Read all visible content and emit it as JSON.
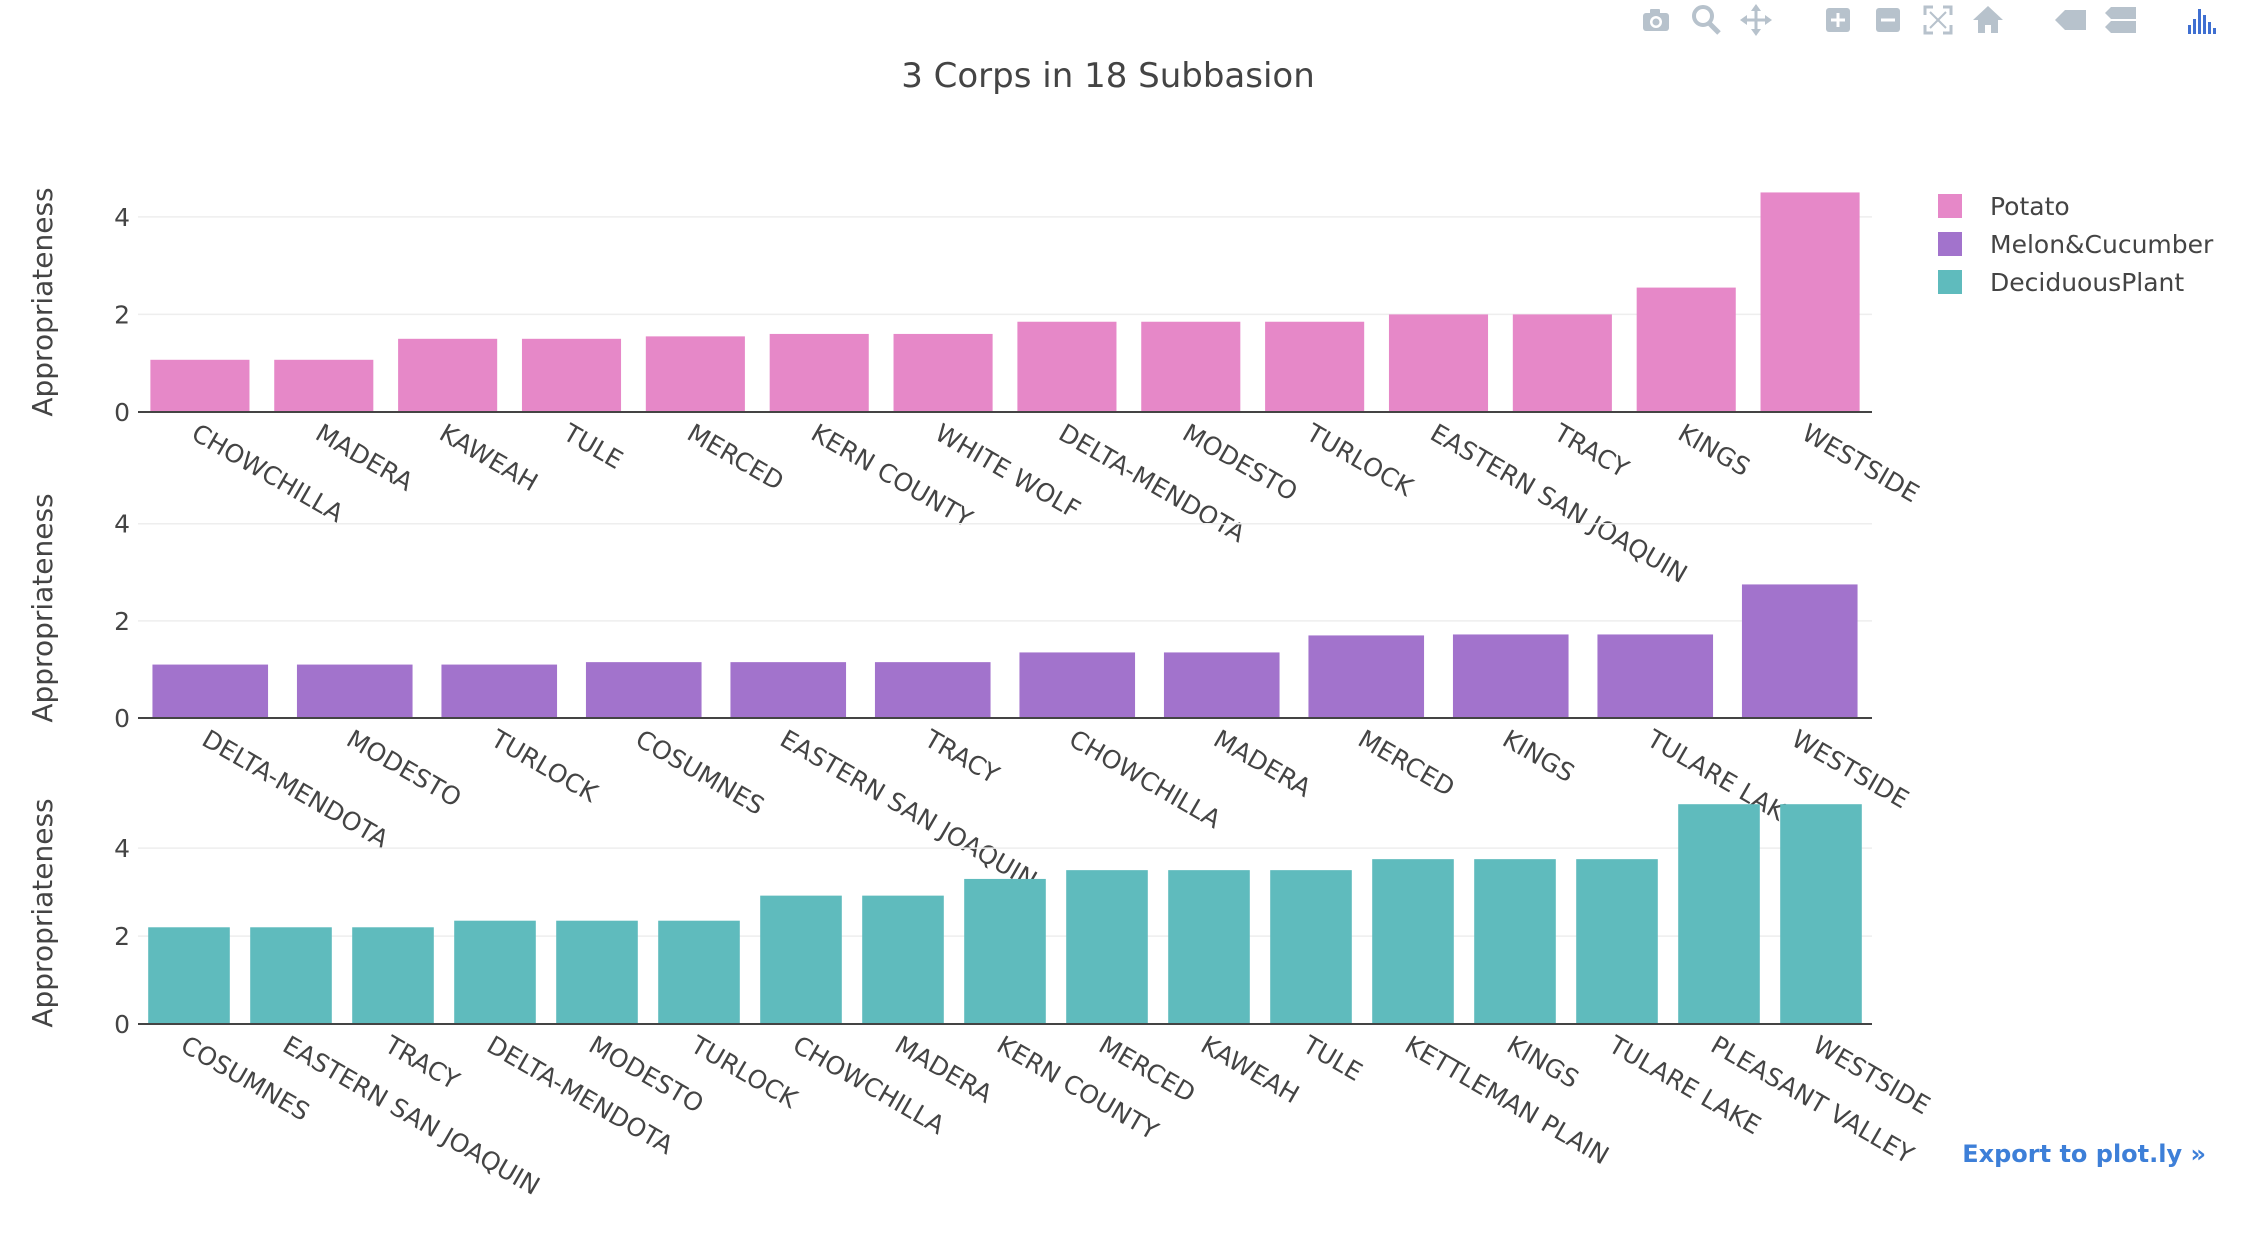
{
  "toolbar": {
    "buttons": [
      {
        "name": "camera-icon",
        "label": "Download plot as a png"
      },
      {
        "name": "zoom-icon",
        "label": "Zoom"
      },
      {
        "name": "pan-icon",
        "label": "Pan"
      },
      {
        "name": "zoom-in-icon",
        "label": "Zoom in"
      },
      {
        "name": "zoom-out-icon",
        "label": "Zoom out"
      },
      {
        "name": "autoscale-icon",
        "label": "Autoscale"
      },
      {
        "name": "home-icon",
        "label": "Reset axes"
      },
      {
        "name": "spike-tag-icon",
        "label": "Show closest data on hover"
      },
      {
        "name": "compare-icon",
        "label": "Compare data on hover"
      },
      {
        "name": "plotly-logo-icon",
        "label": "Produced with Plotly"
      }
    ],
    "colors": {
      "icon": "#b7c2cc",
      "logo": "#3f6fd1"
    }
  },
  "export_link": "Export to plot.ly »",
  "chart_data": {
    "type": "bar",
    "title": "3 Corps in 18 Subbasion",
    "legend": {
      "placement": "top-right",
      "entries": [
        {
          "name": "Potato",
          "color": "#e688c8"
        },
        {
          "name": "Melon&Cucumber",
          "color": "#a273cc"
        },
        {
          "name": "DeciduousPlant",
          "color": "#5fbbbd"
        }
      ]
    },
    "grid": true,
    "subplots": [
      {
        "series": "Potato",
        "color": "#e688c8",
        "ylabel": "Appropriateness",
        "ylim": [
          0,
          4.55
        ],
        "yticks": [
          0,
          2,
          4
        ],
        "categories": [
          "CHOWCHILLA",
          "MADERA",
          "KAWEAH",
          "TULE",
          "MERCED",
          "KERN COUNTY",
          "WHITE WOLF",
          "DELTA-MENDOTA",
          "MODESTO",
          "TURLOCK",
          "EASTERN SAN JOAQUIN",
          "TRACY",
          "KINGS",
          "WESTSIDE"
        ],
        "values": [
          1.07,
          1.07,
          1.5,
          1.5,
          1.55,
          1.6,
          1.6,
          1.85,
          1.85,
          1.85,
          2.0,
          2.0,
          2.55,
          4.5
        ]
      },
      {
        "series": "Melon&Cucumber",
        "color": "#a273cc",
        "ylabel": "Appropriateness",
        "ylim": [
          0,
          4.55
        ],
        "yticks": [
          0,
          2,
          4
        ],
        "categories": [
          "DELTA-MENDOTA",
          "MODESTO",
          "TURLOCK",
          "COSUMNES",
          "EASTERN SAN JOAQUIN",
          "TRACY",
          "CHOWCHILLA",
          "MADERA",
          "MERCED",
          "KINGS",
          "TULARE LAKE",
          "WESTSIDE"
        ],
        "values": [
          1.1,
          1.1,
          1.1,
          1.15,
          1.15,
          1.15,
          1.35,
          1.35,
          1.7,
          1.72,
          1.72,
          2.75
        ]
      },
      {
        "series": "DeciduousPlant",
        "color": "#5fbbbd",
        "ylabel": "Appropriateness",
        "ylim": [
          0,
          5.05
        ],
        "yticks": [
          0,
          2,
          4
        ],
        "categories": [
          "COSUMNES",
          "EASTERN SAN JOAQUIN",
          "TRACY",
          "DELTA-MENDOTA",
          "MODESTO",
          "TURLOCK",
          "CHOWCHILLA",
          "MADERA",
          "KERN COUNTY",
          "MERCED",
          "KAWEAH",
          "TULE",
          "KETTLEMAN PLAIN",
          "KINGS",
          "TULARE LAKE",
          "PLEASANT VALLEY",
          "WESTSIDE"
        ],
        "values": [
          2.2,
          2.2,
          2.2,
          2.35,
          2.35,
          2.35,
          2.92,
          2.92,
          3.3,
          3.5,
          3.5,
          3.5,
          3.75,
          3.75,
          3.75,
          5.0,
          5.0
        ]
      }
    ]
  }
}
